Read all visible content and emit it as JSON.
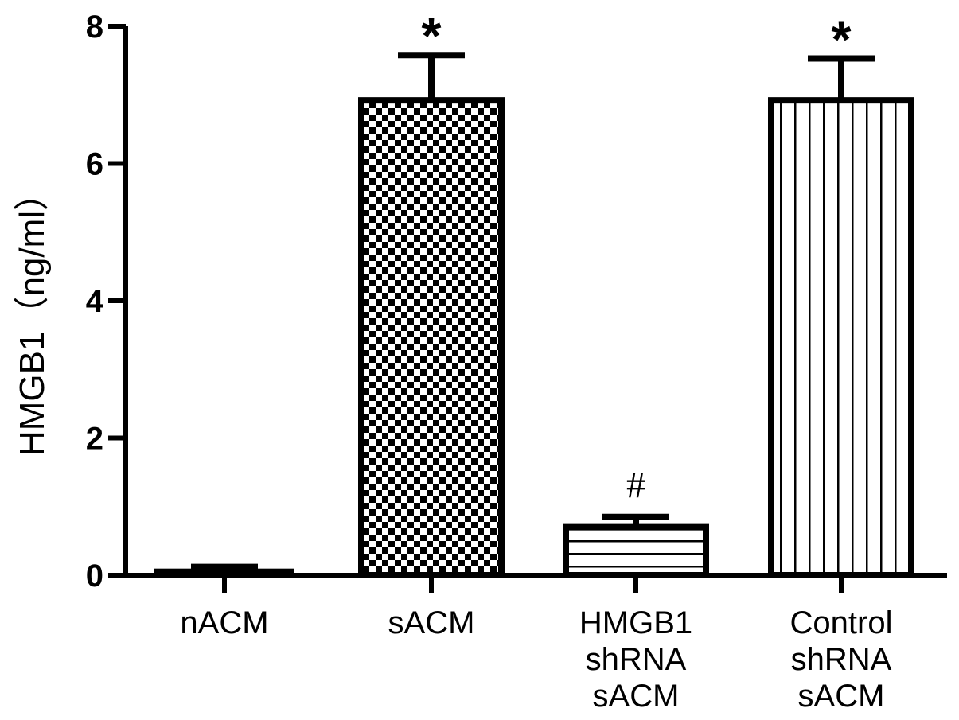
{
  "chart_data": {
    "type": "bar",
    "ylabel": "HMGB1（ng/ml）",
    "xlabel": "",
    "ylim": [
      0,
      8
    ],
    "yticks": [
      0,
      2,
      4,
      6,
      8
    ],
    "ytick_labels": [
      "0",
      "2",
      "4",
      "6",
      "8"
    ],
    "grid": false,
    "categories": [
      [
        "nACM"
      ],
      [
        "sACM"
      ],
      [
        "HMGB1",
        "shRNA",
        "sACM"
      ],
      [
        "Control",
        "shRNA",
        "sACM"
      ]
    ],
    "values": [
      0.05,
      6.92,
      0.7,
      6.92
    ],
    "errors": [
      0.07,
      0.66,
      0.15,
      0.61
    ],
    "patterns": [
      "solid",
      "checker",
      "horizontal-lines",
      "vertical-lines"
    ],
    "annotations": [
      "",
      "*",
      "#",
      "*"
    ]
  }
}
